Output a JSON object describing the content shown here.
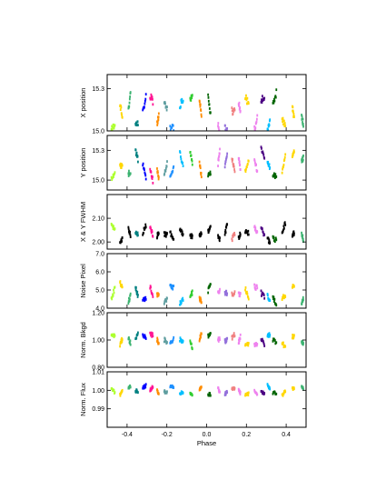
{
  "palette": [
    "#4b0082",
    "#ff00ff",
    "#ff8c00",
    "#0000ff",
    "#228b22",
    "#006400",
    "#008080",
    "#8b0000",
    "#f08080",
    "#ff1493",
    "#1e90ff",
    "#adff2f",
    "#9370db",
    "#ffd700",
    "#5f9ea0",
    "#d2b48c",
    "#ee82ee",
    "#32cd32",
    "#00bfff",
    "#ffa500",
    "#dc143c",
    "#3cb371",
    "#000000"
  ],
  "chart_data": [
    {
      "type": "scatter",
      "ylabel": "X position",
      "xlim": [
        -0.5,
        0.5
      ],
      "ylim": [
        15.0,
        15.4
      ],
      "yticks": [
        15.0,
        15.3
      ],
      "yticklabels": [
        "15.0",
        "15.3"
      ],
      "show_xticklabels": false,
      "base": 15.12,
      "amp": 0.14,
      "noise": 0.05
    },
    {
      "type": "scatter",
      "ylabel": "Y position",
      "xlim": [
        -0.5,
        0.5
      ],
      "ylim": [
        14.9,
        15.45
      ],
      "yticks": [
        15.0,
        15.3
      ],
      "yticklabels": [
        "15.0",
        "15.3"
      ],
      "show_xticklabels": false,
      "base": 15.15,
      "amp": 0.15,
      "noise": 0.05
    },
    {
      "type": "scatter",
      "ylabel": "X & Y FWHM",
      "xlim": [
        -0.5,
        0.5
      ],
      "ylim": [
        1.97,
        2.2
      ],
      "yticks": [
        2.0,
        2.1
      ],
      "yticklabels": [
        "2.00",
        "2.10"
      ],
      "show_xticklabels": false,
      "base": 2.03,
      "amp": 0.04,
      "noise": 0.02
    },
    {
      "type": "scatter",
      "ylabel": "Noise Pixel",
      "xlim": [
        -0.5,
        0.5
      ],
      "ylim": [
        4.0,
        7.0
      ],
      "yticks": [
        4.0,
        5.0,
        6.0,
        7.0
      ],
      "yticklabels": [
        "4.0",
        "5.0",
        "6.0",
        "7.0"
      ],
      "show_xticklabels": false,
      "base": 4.8,
      "amp": 0.6,
      "noise": 0.25
    },
    {
      "type": "scatter",
      "ylabel": "Norm. Bkgd",
      "xlim": [
        -0.5,
        0.5
      ],
      "ylim": [
        0.8,
        1.2
      ],
      "yticks": [
        0.8,
        1.0,
        1.2
      ],
      "yticklabels": [
        "0.80",
        "1.00",
        "1.20"
      ],
      "show_xticklabels": false,
      "base": 1.0,
      "amp": 0.05,
      "noise": 0.03
    },
    {
      "type": "scatter",
      "ylabel": "Norm. Flux",
      "xlabel": "Phase",
      "xlim": [
        -0.5,
        0.5
      ],
      "ylim": [
        0.98,
        1.01
      ],
      "yticks": [
        0.99,
        1.0,
        1.01
      ],
      "yticklabels": [
        "0.99",
        "1.00",
        "1.01"
      ],
      "xticks": [
        -0.4,
        -0.2,
        0.0,
        0.2,
        0.4
      ],
      "xticklabels": [
        "-0.4",
        "-0.2",
        "0.0",
        "0.2",
        "0.4"
      ],
      "show_xticklabels": true,
      "base": 1.0,
      "amp": 0.003,
      "noise": 0.0015
    }
  ]
}
